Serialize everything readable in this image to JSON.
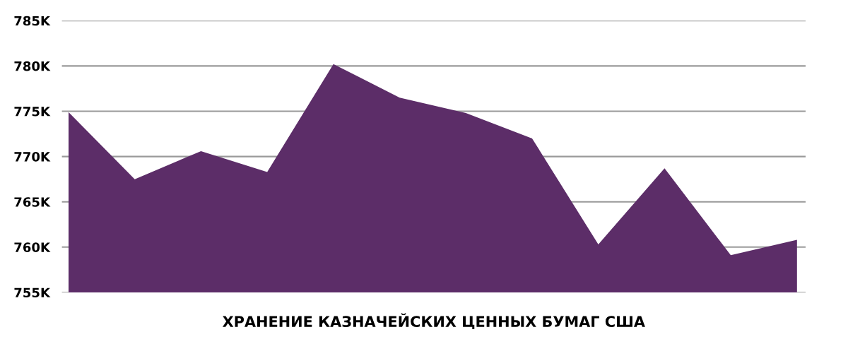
{
  "chart_data": {
    "type": "area",
    "xlabel": "ХРАНЕНИЕ КАЗНАЧЕЙСКИХ ЦЕННЫХ БУМАГ США",
    "categories": [
      null,
      null,
      null,
      null,
      null,
      null,
      null,
      null,
      null,
      null,
      null,
      null
    ],
    "series": [
      {
        "color": "#5c2d68",
        "values": [
          774.9,
          767.5,
          770.6,
          768.3,
          780.2,
          776.5,
          774.8,
          772.0,
          760.3,
          768.7,
          759.1,
          760.8
        ]
      }
    ],
    "ylim": [
      755,
      785
    ],
    "yticks": [
      {
        "value": 755,
        "label": "755K"
      },
      {
        "value": 760,
        "label": "760K"
      },
      {
        "value": 765,
        "label": "765K"
      },
      {
        "value": 770,
        "label": "770K"
      },
      {
        "value": 775,
        "label": "775K"
      },
      {
        "value": 780,
        "label": "780K"
      },
      {
        "value": 785,
        "label": "785K"
      }
    ],
    "grid": "y",
    "tick_labels": "y"
  }
}
